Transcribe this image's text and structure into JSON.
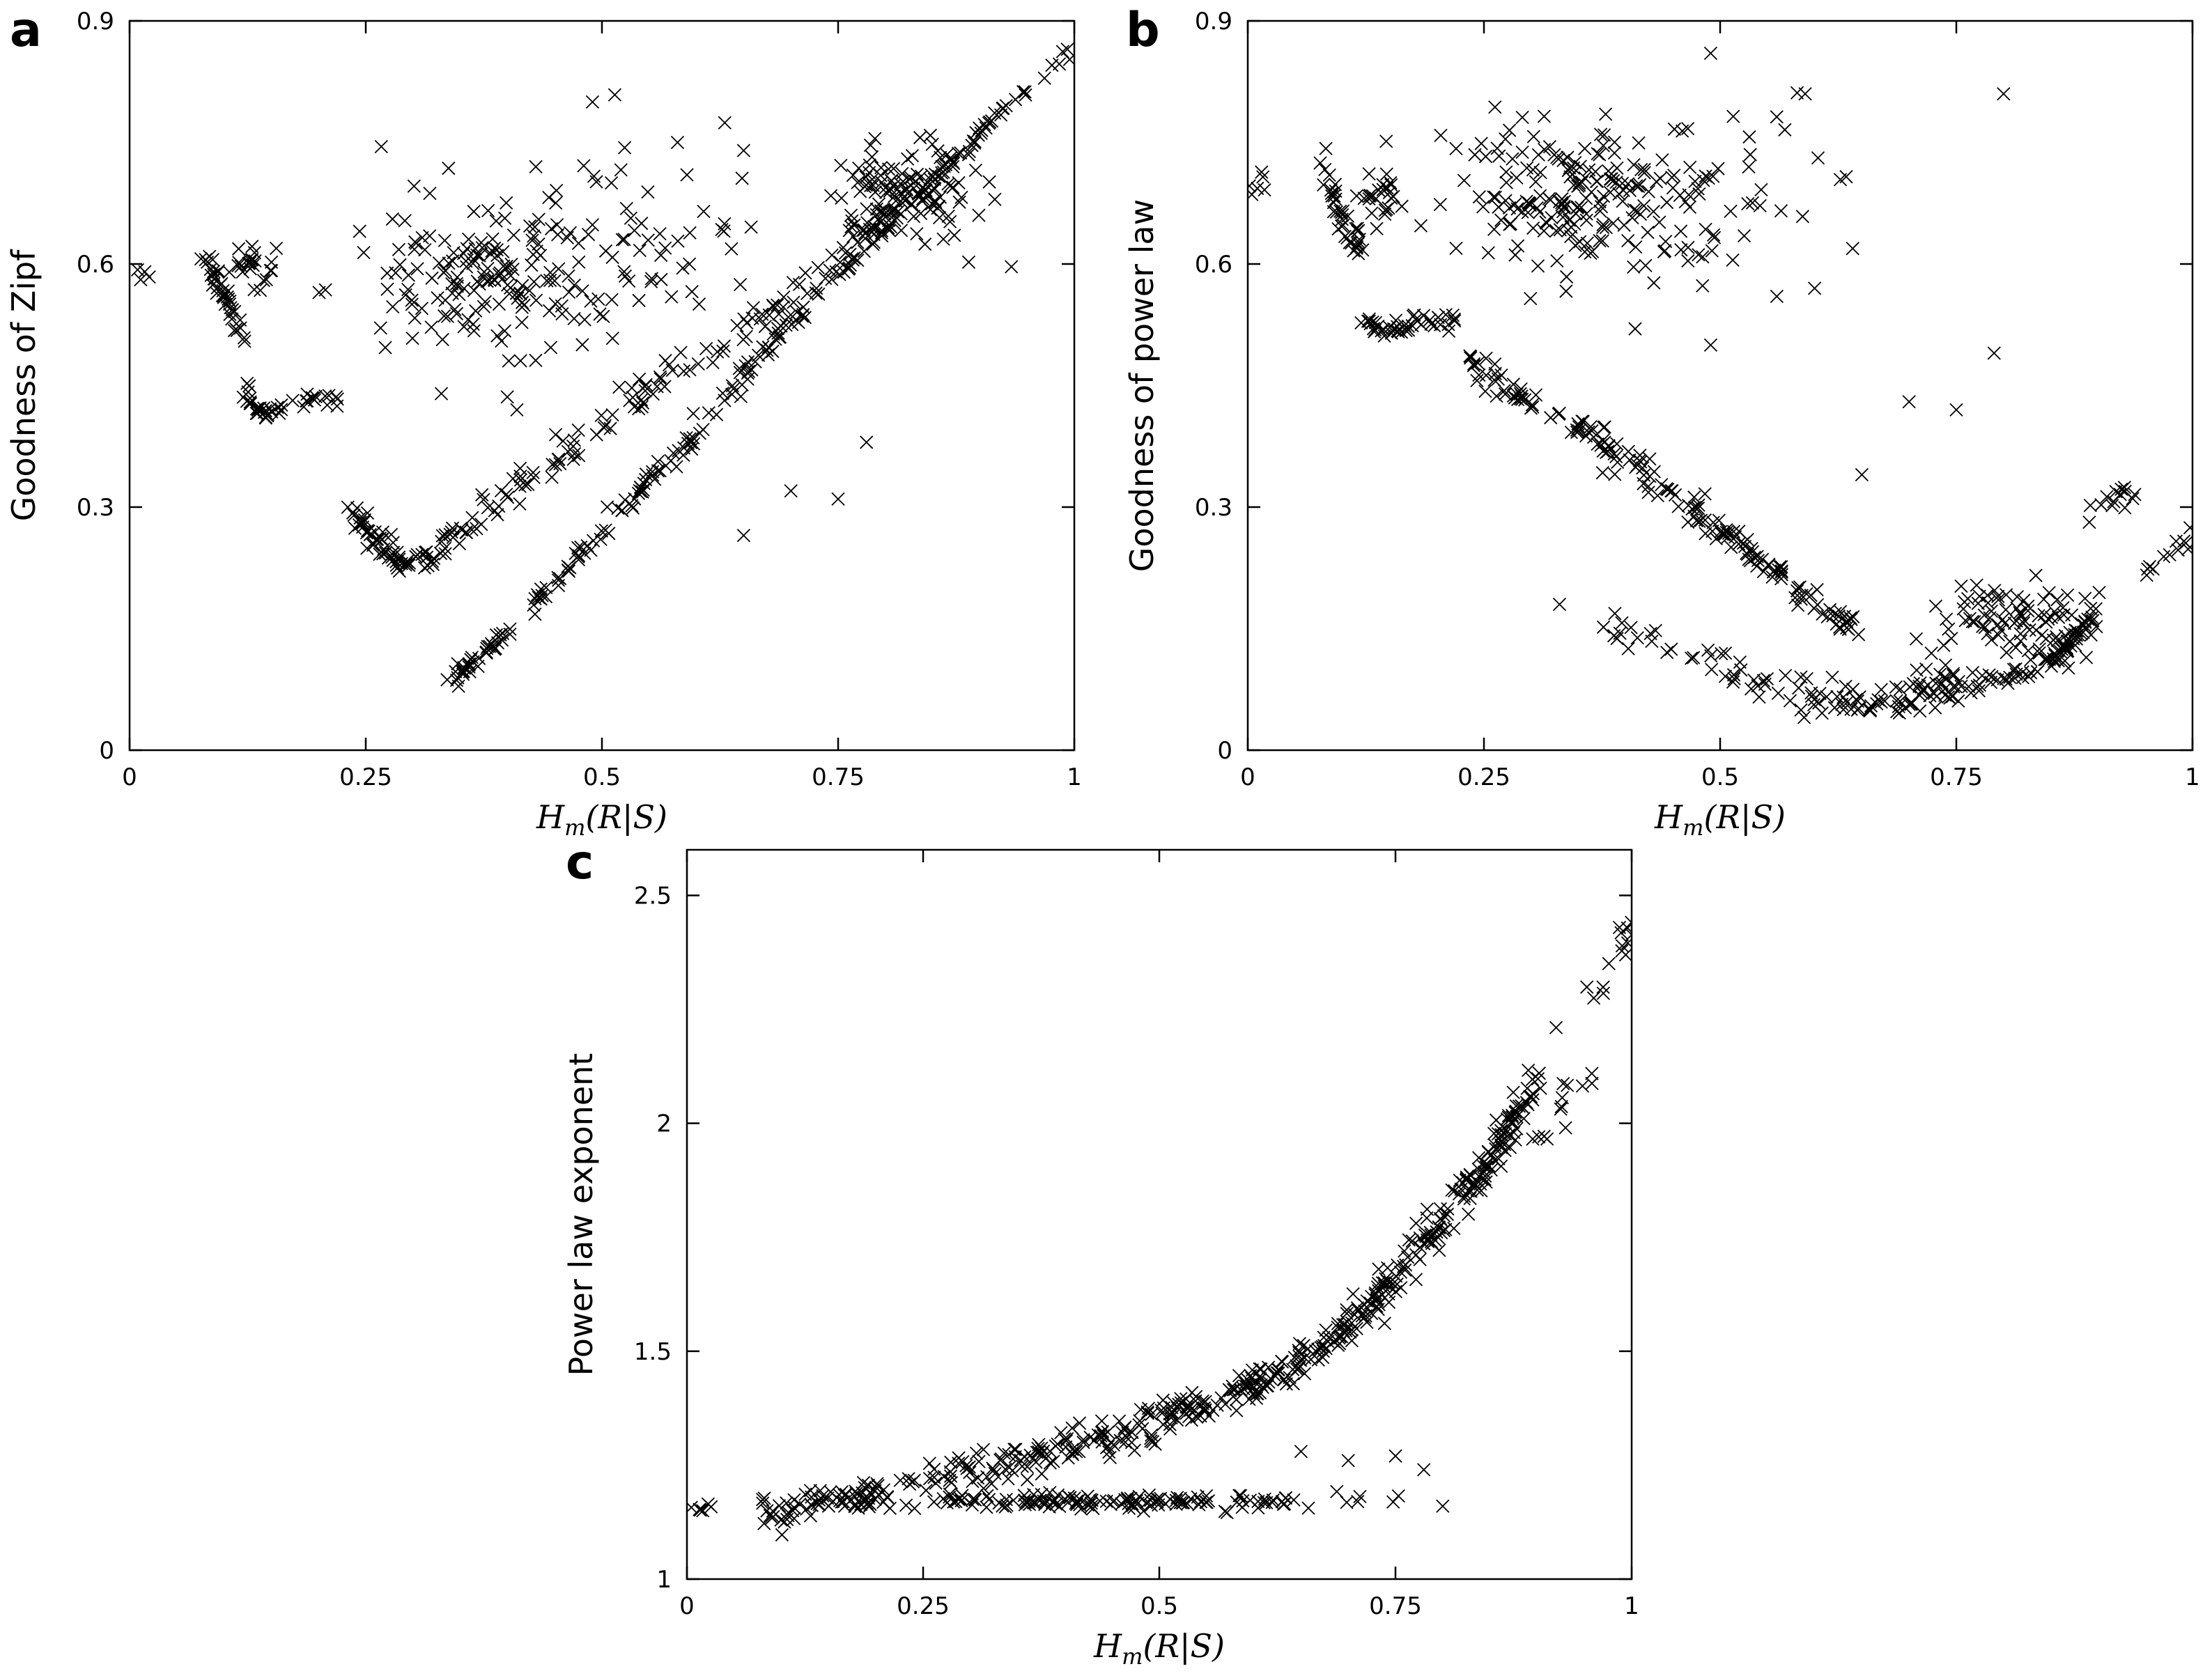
{
  "figure": {
    "panels": [
      "a",
      "b",
      "c"
    ]
  },
  "chart_data": [
    {
      "id": "a",
      "panel_label": "a",
      "type": "scatter",
      "marker": "x",
      "xlabel": "H_m(R|S)",
      "xlabel_parts": {
        "main": "H",
        "sub": "m",
        "rest": "(R|S)"
      },
      "ylabel": "Goodness of Zipf",
      "xlim": [
        0,
        1
      ],
      "ylim": [
        0,
        0.9
      ],
      "xticks": [
        0,
        0.25,
        0.5,
        0.75,
        1
      ],
      "xtick_labels": [
        "0",
        "0.25",
        "0.5",
        "0.75",
        "1"
      ],
      "yticks": [
        0,
        0.3,
        0.6,
        0.9
      ],
      "ytick_labels": [
        "0",
        "0.3",
        "0.6",
        "0.9"
      ],
      "clusters": [
        {
          "kind": "blob",
          "cx": 0.01,
          "cy": 0.585,
          "sx": 0.008,
          "sy": 0.01,
          "n": 6
        },
        {
          "kind": "curve",
          "pts": [
            [
              0.08,
              0.6
            ],
            [
              0.1,
              0.56
            ],
            [
              0.12,
              0.52
            ]
          ],
          "n": 40,
          "jitter": 0.008
        },
        {
          "kind": "blob",
          "cx": 0.13,
          "cy": 0.6,
          "sx": 0.012,
          "sy": 0.015,
          "n": 25
        },
        {
          "kind": "curve",
          "pts": [
            [
              0.12,
              0.44
            ],
            [
              0.14,
              0.415
            ],
            [
              0.18,
              0.43
            ],
            [
              0.22,
              0.43
            ]
          ],
          "n": 45,
          "jitter": 0.006
        },
        {
          "kind": "curve",
          "pts": [
            [
              0.23,
              0.3
            ],
            [
              0.26,
              0.26
            ],
            [
              0.29,
              0.225
            ],
            [
              0.33,
              0.25
            ],
            [
              0.36,
              0.28
            ]
          ],
          "n": 80,
          "jitter": 0.01
        },
        {
          "kind": "curve",
          "pts": [
            [
              0.36,
              0.28
            ],
            [
              0.45,
              0.36
            ],
            [
              0.55,
              0.44
            ],
            [
              0.65,
              0.52
            ],
            [
              0.75,
              0.6
            ],
            [
              0.8,
              0.67
            ]
          ],
          "n": 120,
          "jitter": 0.012
        },
        {
          "kind": "curve",
          "pts": [
            [
              0.34,
              0.085
            ],
            [
              0.4,
              0.14
            ],
            [
              0.5,
              0.27
            ],
            [
              0.6,
              0.39
            ],
            [
              0.7,
              0.53
            ],
            [
              0.8,
              0.64
            ],
            [
              0.9,
              0.76
            ],
            [
              1.0,
              0.87
            ]
          ],
          "n": 220,
          "jitter": 0.006
        },
        {
          "kind": "blob",
          "cx": 0.83,
          "cy": 0.69,
          "sx": 0.035,
          "sy": 0.03,
          "n": 130
        },
        {
          "kind": "blob",
          "cx": 0.38,
          "cy": 0.59,
          "sx": 0.07,
          "sy": 0.05,
          "n": 170
        },
        {
          "kind": "blob",
          "cx": 0.55,
          "cy": 0.62,
          "sx": 0.07,
          "sy": 0.07,
          "n": 50
        }
      ],
      "points": [
        [
          0.49,
          0.8
        ],
        [
          0.58,
          0.75
        ],
        [
          0.65,
          0.74
        ],
        [
          0.43,
          0.72
        ],
        [
          0.59,
          0.71
        ],
        [
          0.78,
          0.38
        ],
        [
          0.7,
          0.32
        ],
        [
          0.75,
          0.31
        ],
        [
          0.65,
          0.265
        ],
        [
          0.41,
          0.42
        ],
        [
          0.33,
          0.44
        ],
        [
          0.51,
          0.7
        ]
      ]
    },
    {
      "id": "b",
      "panel_label": "b",
      "type": "scatter",
      "marker": "x",
      "xlabel": "H_m(R|S)",
      "xlabel_parts": {
        "main": "H",
        "sub": "m",
        "rest": "(R|S)"
      },
      "ylabel": "Goodness of power law",
      "xlim": [
        0,
        1
      ],
      "ylim": [
        0,
        0.9
      ],
      "xticks": [
        0,
        0.25,
        0.5,
        0.75,
        1
      ],
      "xtick_labels": [
        "0",
        "0.25",
        "0.5",
        "0.75",
        "1"
      ],
      "yticks": [
        0,
        0.3,
        0.6,
        0.9
      ],
      "ytick_labels": [
        "0",
        "0.3",
        "0.6",
        "0.9"
      ],
      "clusters": [
        {
          "kind": "blob",
          "cx": 0.01,
          "cy": 0.69,
          "sx": 0.008,
          "sy": 0.01,
          "n": 6
        },
        {
          "kind": "curve",
          "pts": [
            [
              0.08,
              0.73
            ],
            [
              0.1,
              0.66
            ],
            [
              0.12,
              0.62
            ]
          ],
          "n": 40,
          "jitter": 0.01
        },
        {
          "kind": "blob",
          "cx": 0.14,
          "cy": 0.68,
          "sx": 0.015,
          "sy": 0.015,
          "n": 25
        },
        {
          "kind": "curve",
          "pts": [
            [
              0.12,
              0.53
            ],
            [
              0.15,
              0.515
            ],
            [
              0.18,
              0.53
            ],
            [
              0.22,
              0.53
            ]
          ],
          "n": 45,
          "jitter": 0.006
        },
        {
          "kind": "curve",
          "pts": [
            [
              0.23,
              0.48
            ],
            [
              0.3,
              0.43
            ],
            [
              0.4,
              0.36
            ],
            [
              0.5,
              0.27
            ],
            [
              0.58,
              0.2
            ],
            [
              0.64,
              0.15
            ]
          ],
          "n": 180,
          "jitter": 0.01
        },
        {
          "kind": "curve",
          "pts": [
            [
              0.38,
              0.16
            ],
            [
              0.45,
              0.12
            ],
            [
              0.55,
              0.08
            ],
            [
              0.62,
              0.06
            ],
            [
              0.7,
              0.08
            ],
            [
              0.75,
              0.1
            ]
          ],
          "n": 70,
          "jitter": 0.015
        },
        {
          "kind": "curve",
          "pts": [
            [
              0.6,
              0.05
            ],
            [
              0.7,
              0.06
            ],
            [
              0.8,
              0.09
            ],
            [
              0.86,
              0.12
            ],
            [
              0.9,
              0.17
            ]
          ],
          "n": 120,
          "jitter": 0.008
        },
        {
          "kind": "blob",
          "cx": 0.82,
          "cy": 0.16,
          "sx": 0.04,
          "sy": 0.025,
          "n": 90
        },
        {
          "kind": "blob",
          "cx": 0.35,
          "cy": 0.68,
          "sx": 0.07,
          "sy": 0.04,
          "n": 190
        },
        {
          "kind": "blob",
          "cx": 0.5,
          "cy": 0.68,
          "sx": 0.07,
          "sy": 0.06,
          "n": 45
        },
        {
          "kind": "curve",
          "pts": [
            [
              0.89,
              0.29
            ],
            [
              0.92,
              0.31
            ],
            [
              0.95,
              0.315
            ]
          ],
          "n": 14,
          "jitter": 0.01
        },
        {
          "kind": "curve",
          "pts": [
            [
              0.95,
              0.22
            ],
            [
              0.98,
              0.25
            ],
            [
              1.0,
              0.27
            ]
          ],
          "n": 12,
          "jitter": 0.008
        }
      ],
      "points": [
        [
          0.49,
          0.86
        ],
        [
          0.59,
          0.81
        ],
        [
          0.8,
          0.81
        ],
        [
          0.79,
          0.49
        ],
        [
          0.75,
          0.42
        ],
        [
          0.7,
          0.43
        ],
        [
          0.65,
          0.34
        ],
        [
          0.56,
          0.56
        ],
        [
          0.6,
          0.57
        ],
        [
          0.33,
          0.18
        ],
        [
          0.41,
          0.52
        ],
        [
          0.49,
          0.5
        ]
      ]
    },
    {
      "id": "c",
      "panel_label": "c",
      "type": "scatter",
      "marker": "x",
      "xlabel": "H_m(R|S)",
      "xlabel_parts": {
        "main": "H",
        "sub": "m",
        "rest": "(R|S)"
      },
      "ylabel": "Power law exponent",
      "xlim": [
        0,
        1
      ],
      "ylim": [
        1,
        2.6
      ],
      "xticks": [
        0,
        0.25,
        0.5,
        0.75,
        1
      ],
      "xtick_labels": [
        "0",
        "0.25",
        "0.5",
        "0.75",
        "1"
      ],
      "yticks": [
        1,
        1.5,
        2,
        2.5
      ],
      "ytick_labels": [
        "1",
        "1.5",
        "2",
        "2.5"
      ],
      "clusters": [
        {
          "kind": "blob",
          "cx": 0.015,
          "cy": 1.155,
          "sx": 0.008,
          "sy": 0.005,
          "n": 6
        },
        {
          "kind": "curve",
          "pts": [
            [
              0.08,
              1.14
            ],
            [
              0.12,
              1.16
            ],
            [
              0.18,
              1.18
            ],
            [
              0.22,
              1.195
            ]
          ],
          "n": 70,
          "jitter": 0.01
        },
        {
          "kind": "curve",
          "pts": [
            [
              0.23,
              1.21
            ],
            [
              0.35,
              1.27
            ],
            [
              0.5,
              1.35
            ],
            [
              0.6,
              1.43
            ],
            [
              0.7,
              1.55
            ],
            [
              0.78,
              1.75
            ],
            [
              0.85,
              1.93
            ],
            [
              0.9,
              2.1
            ]
          ],
          "n": 300,
          "jitter": 0.012
        },
        {
          "kind": "curve",
          "pts": [
            [
              0.3,
              1.22
            ],
            [
              0.45,
              1.3
            ],
            [
              0.55,
              1.37
            ],
            [
              0.65,
              1.47
            ],
            [
              0.75,
              1.64
            ],
            [
              0.83,
              1.85
            ],
            [
              0.88,
              2.0
            ]
          ],
          "n": 150,
          "jitter": 0.012
        },
        {
          "kind": "blob",
          "cx": 0.42,
          "cy": 1.17,
          "sx": 0.12,
          "sy": 0.008,
          "n": 150
        },
        {
          "kind": "curve",
          "pts": [
            [
              0.95,
              2.25
            ],
            [
              0.98,
              2.35
            ],
            [
              1.0,
              2.45
            ]
          ],
          "n": 16,
          "jitter": 0.012
        },
        {
          "kind": "curve",
          "pts": [
            [
              0.9,
              1.95
            ],
            [
              0.93,
              2.05
            ],
            [
              0.96,
              2.1
            ]
          ],
          "n": 12,
          "jitter": 0.015
        }
      ],
      "points": [
        [
          0.65,
          1.28
        ],
        [
          0.7,
          1.26
        ],
        [
          0.75,
          1.27
        ],
        [
          0.78,
          1.24
        ],
        [
          0.8,
          1.16
        ],
        [
          0.71,
          1.17
        ],
        [
          0.63,
          1.17
        ],
        [
          0.34,
          1.22
        ],
        [
          0.92,
          2.21
        ],
        [
          0.93,
          1.99
        ]
      ]
    }
  ]
}
